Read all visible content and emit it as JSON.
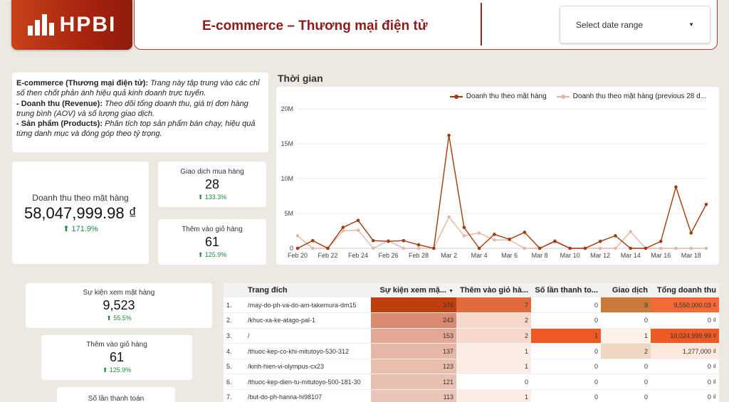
{
  "brand": {
    "logo_text": "HPBI"
  },
  "header": {
    "title": "E-commerce – Thương mại điện tử",
    "date_range_label": "Select date range"
  },
  "description": {
    "intro_bold": "E-commerce (Thương mại điện tử):",
    "intro_text": " Trang này tập trung vào các chỉ số then chốt phản ánh hiệu quả kinh doanh trực tuyến.",
    "revenue_bold": "- Doanh thu (Revenue):",
    "revenue_text": " Theo dõi tổng doanh thu, giá trị đơn hàng trung bình (AOV) và số lượng giao dịch.",
    "products_bold": "- Sản phẩm (Products):",
    "products_text": " Phân tích top sản phẩm bán chạy, hiệu quả từng danh mục và đóng góp theo tỷ trọng."
  },
  "kpis": {
    "revenue": {
      "label": "Doanh thu theo mặt hàng",
      "value": "58,047,999.98 ₫",
      "delta": "⬆ 171.9%"
    },
    "transactions": {
      "label": "Giao dịch mua hàng",
      "value": "28",
      "delta": "⬆ 133.3%"
    },
    "add_to_cart": {
      "label": "Thêm vào giỏ hàng",
      "value": "61",
      "delta": "⬆ 125.9%"
    },
    "item_views": {
      "label": "Sự kiện xem mặt hàng",
      "value": "9,523",
      "delta": "⬆ 55.5%"
    },
    "add_to_cart_2": {
      "label": "Thêm vào giỏ hàng",
      "value": "61",
      "delta": "⬆ 125.9%"
    },
    "checkouts": {
      "label": "Số lần thanh toán"
    }
  },
  "chart_title": "Thời gian",
  "chart_data": {
    "type": "line",
    "x": [
      "Feb 20",
      "Feb 21",
      "Feb 22",
      "Feb 23",
      "Feb 24",
      "Feb 25",
      "Feb 26",
      "Feb 27",
      "Feb 28",
      "Mar 1",
      "Mar 2",
      "Mar 3",
      "Mar 4",
      "Mar 5",
      "Mar 6",
      "Mar 7",
      "Mar 8",
      "Mar 9",
      "Mar 10",
      "Mar 11",
      "Mar 12",
      "Mar 13",
      "Mar 14",
      "Mar 15",
      "Mar 16",
      "Mar 17",
      "Mar 18",
      "Mar 19"
    ],
    "x_tick_labels": [
      "Feb 20",
      "Feb 22",
      "Feb 24",
      "Feb 26",
      "Feb 28",
      "Mar 2",
      "Mar 4",
      "Mar 6",
      "Mar 8",
      "Mar 10",
      "Mar 12",
      "Mar 14",
      "Mar 16",
      "Mar 18"
    ],
    "series": [
      {
        "name": "Doanh thu theo mặt hàng",
        "color": "#a33a0e",
        "values": [
          0,
          1.1,
          0,
          3.0,
          4.0,
          1.1,
          1.0,
          1.1,
          0.5,
          0,
          16.2,
          3.0,
          0,
          2.0,
          1.3,
          2.3,
          0,
          1.0,
          0,
          0,
          1.0,
          1.8,
          0,
          0,
          1.0,
          8.8,
          2.2,
          6.3
        ]
      },
      {
        "name": "Doanh thu theo mặt hàng (previous 28 d...",
        "color": "#e3b6a6",
        "values": [
          1.8,
          0,
          0,
          2.5,
          2.6,
          0,
          1.1,
          0,
          0,
          0,
          4.5,
          1.8,
          2.2,
          1.2,
          1.2,
          0,
          0,
          1.1,
          0,
          0,
          0,
          0,
          2.4,
          0,
          0,
          0,
          0,
          0
        ]
      }
    ],
    "y_ticks": [
      "0",
      "5M",
      "10M",
      "15M",
      "20M"
    ],
    "ylim": [
      0,
      20
    ],
    "y_unit": "M",
    "grid": true,
    "legend": "top-right"
  },
  "table": {
    "columns": [
      "Trang đích",
      "Sự kiện xem mặ...",
      "Thêm vào giỏ hà...",
      "Số lần thanh to...",
      "Giao dịch",
      "Tổng doanh thu"
    ],
    "sort_indicator": "▼",
    "rows": [
      {
        "idx": "1.",
        "page": "/may-do-ph-va-do-am-takemura-dm15",
        "views": "376",
        "cart": "7",
        "checkout": "0",
        "trans": "9",
        "revenue": "9,550,000.03 ₫"
      },
      {
        "idx": "2.",
        "page": "/khuc-xa-ke-atago-pal-1",
        "views": "243",
        "cart": "2",
        "checkout": "0",
        "trans": "0",
        "revenue": "0 ₫"
      },
      {
        "idx": "3.",
        "page": "/",
        "views": "153",
        "cart": "2",
        "checkout": "1",
        "trans": "1",
        "revenue": "10,024,999.99 ₫"
      },
      {
        "idx": "4.",
        "page": "/thuoc-kep-co-khi-mitutoyo-530-312",
        "views": "137",
        "cart": "1",
        "checkout": "0",
        "trans": "2",
        "revenue": "1,277,000 ₫"
      },
      {
        "idx": "5.",
        "page": "/kinh-hien-vi-olympus-cx23",
        "views": "123",
        "cart": "1",
        "checkout": "0",
        "trans": "0",
        "revenue": "0 ₫"
      },
      {
        "idx": "6.",
        "page": "/thuoc-kep-dien-tu-mitutoyo-500-181-30",
        "views": "121",
        "cart": "0",
        "checkout": "0",
        "trans": "0",
        "revenue": "0 ₫"
      },
      {
        "idx": "7.",
        "page": "/but-do-ph-hanna-hi98107",
        "views": "113",
        "cart": "1",
        "checkout": "0",
        "trans": "0",
        "revenue": "0 ₫"
      }
    ],
    "heat": {
      "views": [
        "#bf3f0c",
        "#d98a70",
        "#e2a895",
        "#e6b6a6",
        "#e9beaf",
        "#e9bfb1",
        "#eac4b7"
      ],
      "cart": [
        "#e06a3c",
        "#f6d9cc",
        "#f6d9cc",
        "#fbece5",
        "#fbece5",
        "#ffffff",
        "#fbece5"
      ],
      "checkout": [
        "#ffffff",
        "#ffffff",
        "#ee5a24",
        "#ffffff",
        "#ffffff",
        "#ffffff",
        "#ffffff"
      ],
      "trans": [
        "#c97a38",
        "#ffffff",
        "#fbf1e8",
        "#f0d7c2",
        "#ffffff",
        "#ffffff",
        "#ffffff"
      ],
      "revenue": [
        "#f26a35",
        "#ffffff",
        "#ee5a24",
        "#fde8de",
        "#ffffff",
        "#ffffff",
        "#ffffff"
      ]
    }
  }
}
